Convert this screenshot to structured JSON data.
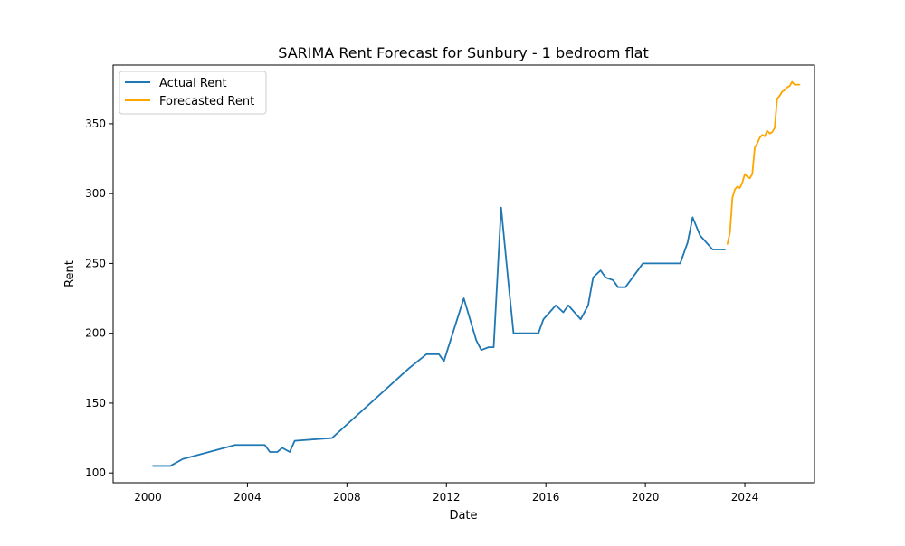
{
  "chart_data": {
    "type": "line",
    "title": "SARIMA Rent Forecast for Sunbury - 1 bedroom flat",
    "xlabel": "Date",
    "ylabel": "Rent",
    "xlim": [
      1998.6,
      2026.8
    ],
    "ylim": [
      93,
      392
    ],
    "x_ticks": [
      2000,
      2004,
      2008,
      2012,
      2016,
      2020,
      2024
    ],
    "x_tick_labels": [
      "2000",
      "2004",
      "2008",
      "2012",
      "2016",
      "2020",
      "2024"
    ],
    "y_ticks": [
      100,
      150,
      200,
      250,
      300,
      350
    ],
    "y_tick_labels": [
      "100",
      "150",
      "200",
      "250",
      "300",
      "350"
    ],
    "grid": false,
    "legend_position": "upper-left",
    "series": [
      {
        "name": "Actual Rent",
        "color": "#1f77b4",
        "x": [
          2000.2,
          2000.9,
          2001.4,
          2003.5,
          2004.7,
          2004.9,
          2005.2,
          2005.4,
          2005.7,
          2005.9,
          2007.4,
          2010.5,
          2011.2,
          2011.7,
          2011.9,
          2012.7,
          2013.2,
          2013.4,
          2013.7,
          2013.9,
          2014.2,
          2014.5,
          2014.7,
          2015.7,
          2015.9,
          2016.4,
          2016.7,
          2016.9,
          2017.4,
          2017.7,
          2017.9,
          2018.2,
          2018.4,
          2018.7,
          2018.9,
          2019.2,
          2019.9,
          2020.5,
          2021.4,
          2021.7,
          2021.9,
          2022.2,
          2022.7,
          2023.2
        ],
        "values": [
          105,
          105,
          110,
          120,
          120,
          115,
          115,
          118,
          115,
          123,
          125,
          175,
          185,
          185,
          180,
          225,
          195,
          188,
          190,
          190,
          290,
          235,
          200,
          200,
          210,
          220,
          215,
          220,
          210,
          220,
          240,
          245,
          240,
          238,
          233,
          233,
          250,
          250,
          250,
          265,
          283,
          270,
          260,
          260
        ]
      },
      {
        "name": "Forecasted Rent",
        "color": "#ffa500",
        "x": [
          2023.3,
          2023.4,
          2023.5,
          2023.6,
          2023.7,
          2023.8,
          2023.9,
          2024.0,
          2024.1,
          2024.2,
          2024.3,
          2024.4,
          2024.5,
          2024.6,
          2024.7,
          2024.8,
          2024.9,
          2025.0,
          2025.1,
          2025.2,
          2025.3,
          2025.4,
          2025.5,
          2025.6,
          2025.7,
          2025.8,
          2025.9,
          2026.0,
          2026.1,
          2026.2
        ],
        "values": [
          264,
          272,
          297,
          303,
          305,
          304,
          308,
          314,
          312,
          311,
          314,
          333,
          336,
          340,
          342,
          341,
          345,
          343,
          344,
          347,
          368,
          370,
          373,
          374,
          376,
          377,
          380,
          378,
          378,
          378
        ]
      }
    ]
  }
}
